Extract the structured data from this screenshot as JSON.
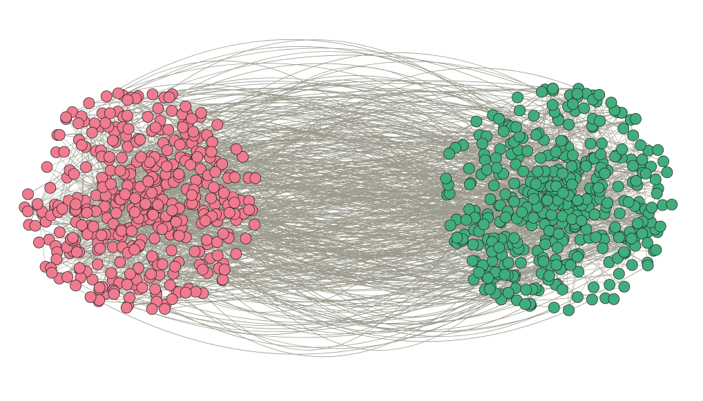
{
  "diagram": {
    "type": "network-graph",
    "layout": "two-cluster",
    "background_color": "#ffffff",
    "edge_color": "#9b9a8c",
    "node_outline_color": "#2a2a2a",
    "clusters": [
      {
        "id": "cluster-a",
        "color": "#f07a8e",
        "approx_node_count": 430
      },
      {
        "id": "cluster-b",
        "color": "#3fae7c",
        "approx_node_count": 420
      }
    ],
    "approx_inter_cluster_edges": 520
  }
}
